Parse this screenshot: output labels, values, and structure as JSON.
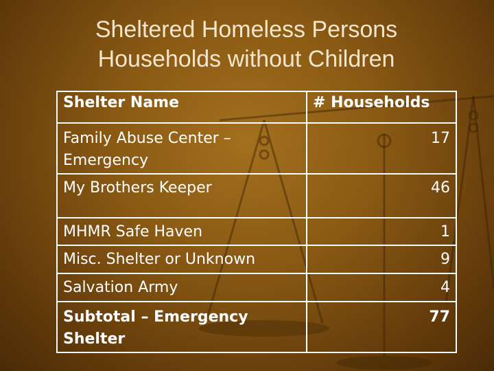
{
  "slide": {
    "title_line1": "Sheltered Homeless Persons",
    "title_line2": "Households without Children"
  },
  "table": {
    "headers": [
      "Shelter Name",
      "# Households"
    ],
    "rows": [
      {
        "name": "Family Abuse Center – Emergency",
        "households": "17"
      },
      {
        "name": "My Brothers Keeper",
        "households": "46"
      },
      {
        "name": "MHMR Safe Haven",
        "households": "1"
      },
      {
        "name": "Misc. Shelter or Unknown",
        "households": "9"
      },
      {
        "name": "Salvation Army",
        "households": "4"
      },
      {
        "name": "Subtotal – Emergency Shelter",
        "households": "77"
      }
    ]
  },
  "colors": {
    "background": "#8a5a14",
    "title_text": "#f4e6cc",
    "table_text": "#ffffff"
  },
  "decoration": {
    "background_image": "balance-scale-icon"
  }
}
